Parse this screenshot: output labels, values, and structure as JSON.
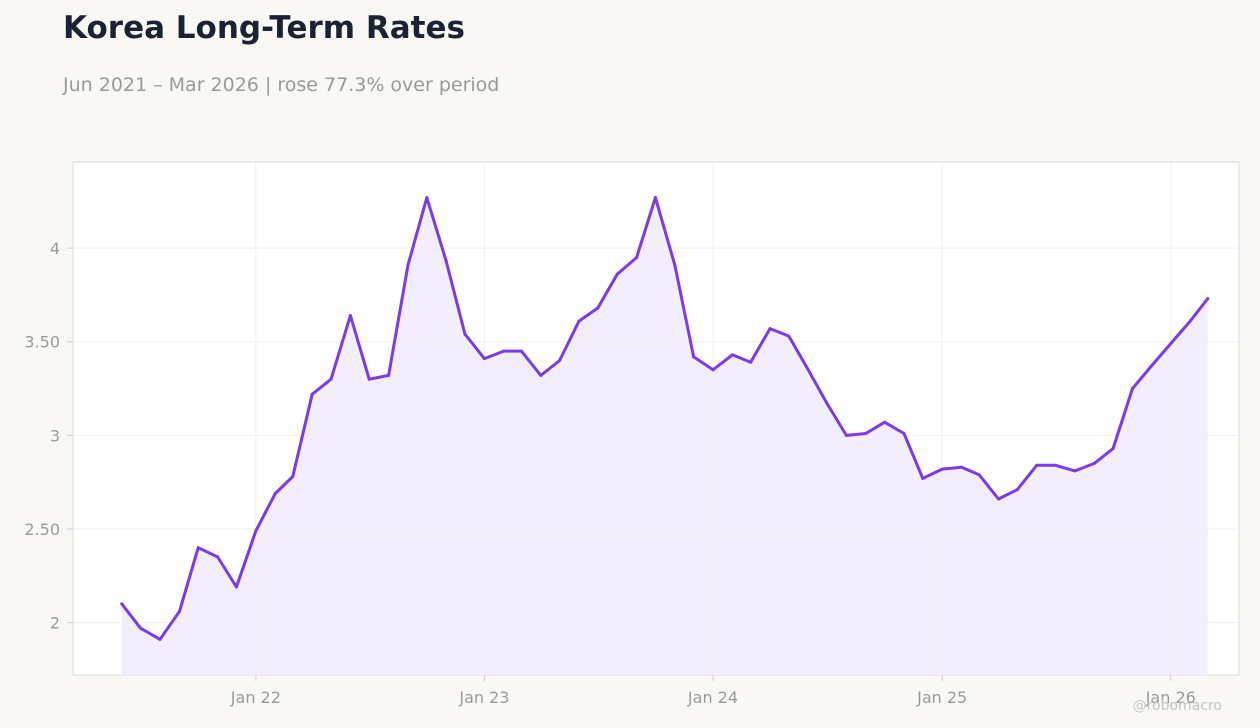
{
  "title": "Korea Long-Term Rates",
  "subtitle": "Jun 2021 – Mar 2026 | rose 77.3% over period",
  "watermark": "@robomacro",
  "colors": {
    "line": "#7c3aed",
    "fill": "#f2ecfd",
    "grid": "#efeff3",
    "plot_bg": "#ffffff",
    "page_bg": "#f9f8f5"
  },
  "chart_data": {
    "type": "area",
    "x": [
      "2021-06",
      "2021-07",
      "2021-08",
      "2021-09",
      "2021-10",
      "2021-11",
      "2021-12",
      "2022-01",
      "2022-02",
      "2022-03",
      "2022-04",
      "2022-05",
      "2022-06",
      "2022-07",
      "2022-08",
      "2022-09",
      "2022-10",
      "2022-11",
      "2022-12",
      "2023-01",
      "2023-02",
      "2023-03",
      "2023-04",
      "2023-05",
      "2023-06",
      "2023-07",
      "2023-08",
      "2023-09",
      "2023-10",
      "2023-11",
      "2023-12",
      "2024-01",
      "2024-02",
      "2024-03",
      "2024-04",
      "2024-05",
      "2024-06",
      "2024-07",
      "2024-08",
      "2024-09",
      "2024-10",
      "2024-11",
      "2024-12",
      "2025-01",
      "2025-02",
      "2025-03",
      "2025-04",
      "2025-05",
      "2025-06",
      "2025-07",
      "2025-08",
      "2025-09",
      "2025-10",
      "2025-11",
      "2025-12",
      "2026-01",
      "2026-02",
      "2026-03"
    ],
    "values": [
      2.1,
      1.97,
      1.91,
      2.06,
      2.4,
      2.35,
      2.19,
      2.49,
      2.69,
      2.78,
      3.22,
      3.3,
      3.64,
      3.3,
      3.32,
      3.91,
      4.27,
      3.93,
      3.54,
      3.41,
      3.45,
      3.45,
      3.32,
      3.4,
      3.61,
      3.68,
      3.86,
      3.95,
      4.27,
      3.91,
      3.42,
      3.35,
      3.43,
      3.39,
      3.57,
      3.53,
      3.35,
      3.17,
      3.0,
      3.01,
      3.07,
      3.01,
      2.77,
      2.82,
      2.83,
      2.79,
      2.66,
      2.71,
      2.84,
      2.84,
      2.81,
      2.85,
      2.93,
      3.25,
      3.37,
      3.49,
      3.61,
      3.73
    ],
    "xticks": [
      {
        "label": "Jan 22",
        "date": "2022-01"
      },
      {
        "label": "Jan 23",
        "date": "2023-01"
      },
      {
        "label": "Jan 24",
        "date": "2024-01"
      },
      {
        "label": "Jan 25",
        "date": "2025-01"
      },
      {
        "label": "Jan 26",
        "date": "2026-01"
      }
    ],
    "yticks": [
      {
        "label": "2",
        "value": 2
      },
      {
        "label": "2.50",
        "value": 2.5
      },
      {
        "label": "3",
        "value": 3
      },
      {
        "label": "3.50",
        "value": 3.5
      },
      {
        "label": "4",
        "value": 4
      }
    ],
    "xlim": [
      "2021-03-15",
      "2026-04-20"
    ],
    "ylim": [
      1.72,
      4.46
    ],
    "grid": true,
    "legend": "none"
  }
}
